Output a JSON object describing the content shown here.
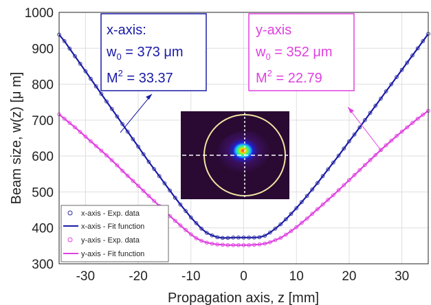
{
  "chart_data": {
    "type": "scatter",
    "xlabel": "Propagation axis, z [mm]",
    "ylabel": "Beam size, w(z) [μ m]",
    "xlim": [
      -35,
      35
    ],
    "ylim": [
      300,
      1000
    ],
    "xticks": [
      "-30",
      "-20",
      "-10",
      "0",
      "10",
      "20",
      "30"
    ],
    "yticks": [
      "300",
      "400",
      "500",
      "600",
      "700",
      "800",
      "900",
      "1000"
    ],
    "grid": true,
    "legend_position": "bottom-left",
    "legend": [
      {
        "label": "x-axis - Exp. data",
        "kind": "marker",
        "color": "#2b2b9a"
      },
      {
        "label": "x-axis - Fit function",
        "kind": "line",
        "color": "#1a1aa8"
      },
      {
        "label": "y-axis - Exp. data",
        "kind": "marker",
        "color": "#e040e0"
      },
      {
        "label": "y-axis - Fit function",
        "kind": "line",
        "color": "#e040e0"
      }
    ],
    "series": [
      {
        "name": "x-axis",
        "color": "#1a1aa8",
        "marker_color": "#2b2b9a",
        "w0_um": 373,
        "M2": 33.37,
        "x": [
          -35,
          -34,
          -33,
          -32,
          -31,
          -30,
          -29,
          -28,
          -27,
          -26,
          -25,
          -24,
          -23,
          -22,
          -21,
          -20,
          -19,
          -18,
          -17,
          -16,
          -15,
          -14,
          -13,
          -12,
          -11,
          -10,
          -9,
          -8,
          -7,
          -6,
          -5,
          -4,
          -3,
          -2,
          -1,
          0,
          1,
          2,
          3,
          4,
          5,
          6,
          7,
          8,
          9,
          10,
          11,
          12,
          13,
          14,
          15,
          16,
          17,
          18,
          19,
          20,
          21,
          22,
          23,
          24,
          25,
          26,
          27,
          28,
          29,
          30,
          31,
          32,
          33,
          34,
          35
        ],
        "y": [
          938,
          920,
          899,
          878,
          857,
          836,
          815,
          794,
          773,
          752,
          731,
          710,
          689,
          668,
          647,
          626,
          605,
          584,
          564,
          544,
          524,
          504,
          484,
          465,
          447,
          429,
          413,
          398,
          386,
          379,
          374,
          372,
          372,
          373,
          373,
          373,
          373,
          373,
          374,
          378,
          387,
          398,
          410,
          424,
          439,
          455,
          472,
          489,
          507,
          525,
          544,
          563,
          582,
          601,
          621,
          641,
          660,
          680,
          700,
          720,
          740,
          760,
          780,
          800,
          820,
          840,
          860,
          880,
          900,
          920,
          940
        ]
      },
      {
        "name": "y-axis",
        "color": "#e040e0",
        "marker_color": "#e040e0",
        "w0_um": 352,
        "M2": 22.79,
        "x": [
          -35,
          -34,
          -33,
          -32,
          -31,
          -30,
          -29,
          -28,
          -27,
          -26,
          -25,
          -24,
          -23,
          -22,
          -21,
          -20,
          -19,
          -18,
          -17,
          -16,
          -15,
          -14,
          -13,
          -12,
          -11,
          -10,
          -9,
          -8,
          -7,
          -6,
          -5,
          -4,
          -3,
          -2,
          -1,
          0,
          1,
          2,
          3,
          4,
          5,
          6,
          7,
          8,
          9,
          10,
          11,
          12,
          13,
          14,
          15,
          16,
          17,
          18,
          19,
          20,
          21,
          22,
          23,
          24,
          25,
          26,
          27,
          28,
          29,
          30,
          31,
          32,
          33,
          34,
          35
        ],
        "y": [
          716,
          704,
          692,
          680,
          667,
          654,
          641,
          628,
          615,
          602,
          588,
          574,
          559,
          545,
          531,
          517,
          503,
          489,
          475,
          461,
          447,
          433,
          420,
          407,
          394,
          382,
          371,
          364,
          359,
          356,
          354,
          353,
          352,
          352,
          352,
          352,
          352,
          353,
          354,
          356,
          360,
          366,
          372,
          381,
          391,
          402,
          414,
          426,
          439,
          452,
          465,
          478,
          491,
          505,
          519,
          533,
          547,
          561,
          575,
          589,
          603,
          617,
          630,
          643,
          656,
          668,
          680,
          692,
          704,
          715,
          726
        ]
      }
    ],
    "annotations": [
      {
        "series": "x-axis",
        "line1": "x-axis:",
        "w0_prefix": "w",
        "w0_sub": "0",
        "w0_value": " = 373 μm",
        "m2_prefix": "M",
        "m2_sup": "2",
        "m2_value": " = 33.37",
        "color": "#1a1aa8"
      },
      {
        "series": "y-axis",
        "line1": "y-axis",
        "w0_prefix": "w",
        "w0_sub": "0",
        "w0_value": " = 352 μm",
        "m2_prefix": "M",
        "m2_sup": "2",
        "m2_value": " = 22.79",
        "color": "#e040e0"
      }
    ]
  }
}
